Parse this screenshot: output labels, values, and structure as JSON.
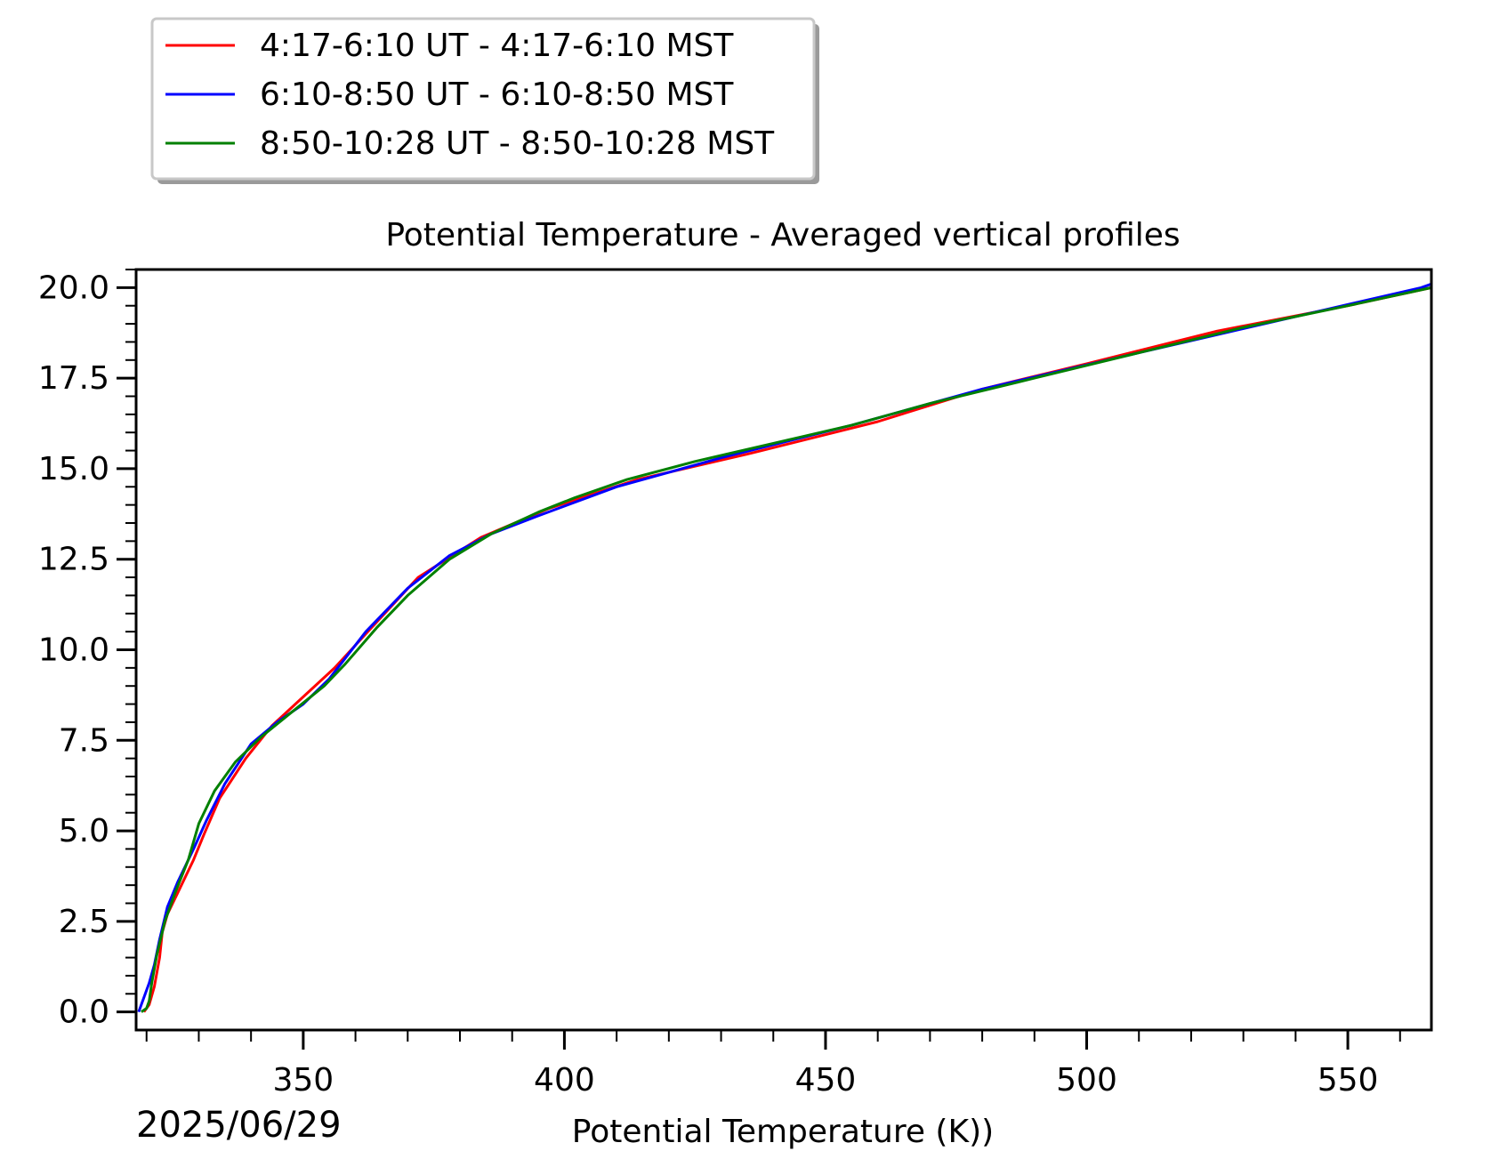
{
  "chart_data": {
    "type": "line",
    "title": "Potential Temperature - Averaged vertical profiles",
    "xlabel": "Potential Temperature (K))",
    "ylabel": "",
    "date_label": "2025/06/29",
    "xlim": [
      318,
      566
    ],
    "ylim": [
      -0.5,
      20.5
    ],
    "x_ticks": [
      350,
      400,
      450,
      500,
      550
    ],
    "x_tick_labels": [
      "350",
      "400",
      "450",
      "500",
      "550"
    ],
    "y_ticks": [
      0.0,
      2.5,
      5.0,
      7.5,
      10.0,
      12.5,
      15.0,
      17.5,
      20.0
    ],
    "y_tick_labels": [
      "0.0",
      "2.5",
      "5.0",
      "7.5",
      "10.0",
      "12.5",
      "15.0",
      "17.5",
      "20.0"
    ],
    "grid": false,
    "legend_position": "above plot, top-left",
    "series": [
      {
        "name": "4:17-6:10 UT - 4:17-6:10 MST",
        "color": "#ff0000",
        "x": [
          319.5,
          320.5,
          321.5,
          322.5,
          323.0,
          324.0,
          326.0,
          329.0,
          331.0,
          334.0,
          339.0,
          344.0,
          350.0,
          356.0,
          363.0,
          372.0,
          384.0,
          397.0,
          414.0,
          435.0,
          460.0,
          480.0,
          500.0,
          525.0,
          550.0,
          566.0
        ],
        "y": [
          0.0,
          0.2,
          0.7,
          1.5,
          2.2,
          2.7,
          3.3,
          4.2,
          4.9,
          5.9,
          7.0,
          7.9,
          8.7,
          9.5,
          10.6,
          12.0,
          13.1,
          13.9,
          14.7,
          15.4,
          16.3,
          17.2,
          17.9,
          18.8,
          19.5,
          20.0
        ]
      },
      {
        "name": "6:10-8:50 UT - 6:10-8:50 MST",
        "color": "#0000ff",
        "x": [
          318.5,
          319.5,
          320.5,
          321.5,
          322.5,
          324.0,
          326.0,
          329.0,
          331.5,
          335.0,
          340.0,
          345.0,
          350.0,
          355.0,
          362.0,
          370.0,
          378.0,
          386.0,
          395.0,
          410.0,
          430.0,
          455.0,
          480.0,
          510.0,
          540.0,
          564.0,
          566.0
        ],
        "y": [
          0.0,
          0.4,
          0.8,
          1.3,
          2.0,
          2.9,
          3.6,
          4.5,
          5.3,
          6.3,
          7.4,
          8.0,
          8.5,
          9.2,
          10.5,
          11.7,
          12.6,
          13.2,
          13.7,
          14.5,
          15.3,
          16.2,
          17.2,
          18.2,
          19.2,
          20.0,
          20.1
        ]
      },
      {
        "name": "8:50-10:28 UT - 8:50-10:28 MST",
        "color": "#008000",
        "x": [
          319.0,
          320.0,
          320.5,
          321.0,
          322.0,
          323.5,
          325.5,
          328.0,
          330.0,
          333.0,
          337.0,
          342.0,
          348.0,
          354.0,
          358.0,
          364.0,
          370.0,
          378.0,
          386.0,
          395.0,
          402.0,
          412.0,
          425.0,
          440.0,
          455.0,
          470.0,
          490.0,
          510.0,
          530.0,
          550.0,
          566.0
        ],
        "y": [
          0.0,
          0.1,
          0.3,
          0.8,
          1.6,
          2.5,
          3.3,
          4.2,
          5.2,
          6.1,
          6.9,
          7.6,
          8.3,
          9.0,
          9.6,
          10.6,
          11.5,
          12.5,
          13.2,
          13.8,
          14.2,
          14.7,
          15.2,
          15.7,
          16.2,
          16.8,
          17.5,
          18.2,
          18.9,
          19.5,
          20.0
        ]
      }
    ]
  }
}
